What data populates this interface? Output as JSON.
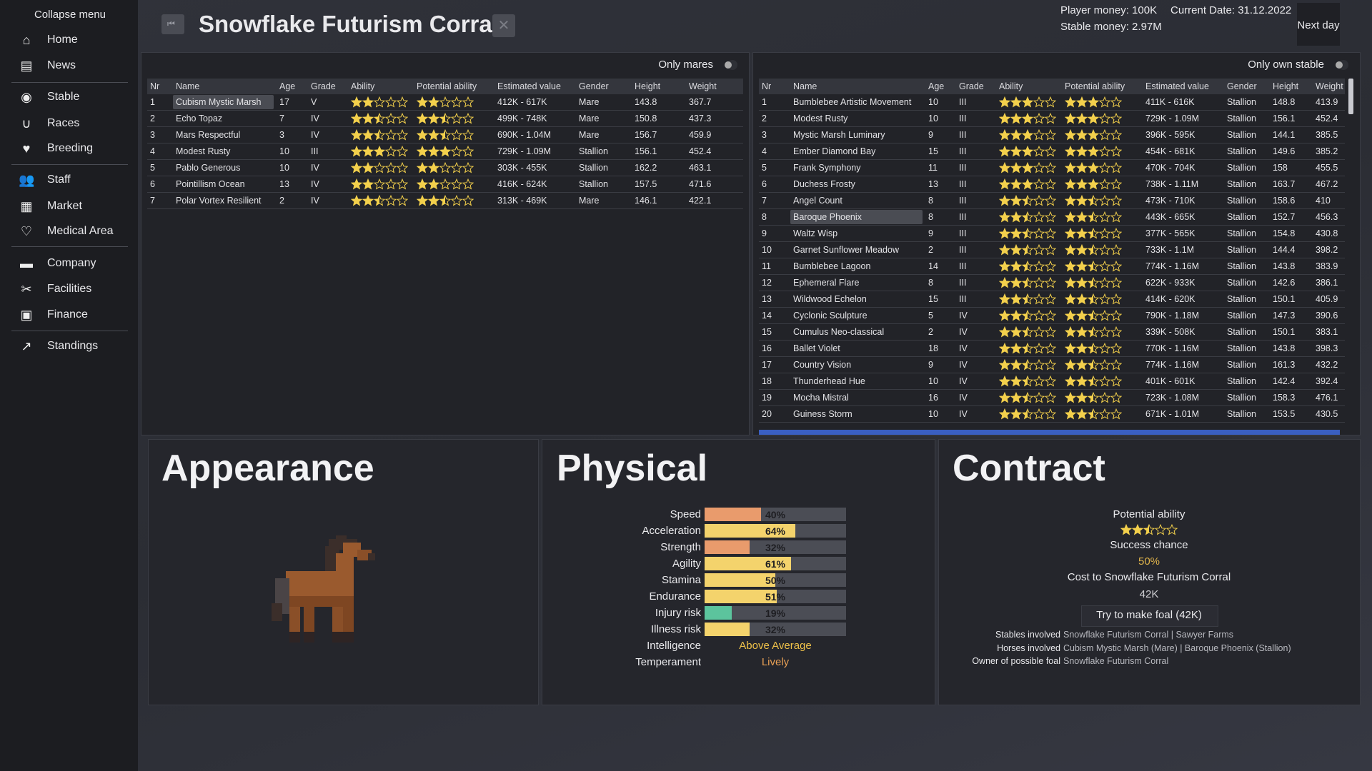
{
  "menu": {
    "collapse": "Collapse menu",
    "groups": [
      [
        "Home",
        "News"
      ],
      [
        "Stable",
        "Races",
        "Breeding"
      ],
      [
        "Staff",
        "Market",
        "Medical Area"
      ],
      [
        "Company",
        "Facilities",
        "Finance"
      ],
      [
        "Standings"
      ]
    ]
  },
  "header": {
    "title": "Snowflake Futurism Corral",
    "player_money": "Player money: 100K",
    "current_date": "Current Date: 31.12.2022",
    "stable_money": "Stable money: 2.97M",
    "next_day": "Next day"
  },
  "mares_table": {
    "toggle": "Only mares",
    "columns": [
      "Nr",
      "Name",
      "Age",
      "Grade",
      "Ability",
      "Potential ability",
      "Estimated value",
      "Gender",
      "Height",
      "Weight"
    ],
    "rows": [
      [
        1,
        "Cubism Mystic Marsh",
        17,
        "V",
        2,
        2,
        "412K - 617K",
        "Mare",
        143.8,
        367.7
      ],
      [
        2,
        "Echo Topaz",
        7,
        "IV",
        2.5,
        2.5,
        "499K - 748K",
        "Mare",
        150.8,
        437.3
      ],
      [
        3,
        "Mars Respectful",
        3,
        "IV",
        2.5,
        2.5,
        "690K - 1.04M",
        "Mare",
        156.7,
        459.9
      ],
      [
        4,
        "Modest Rusty",
        10,
        "III",
        3,
        3,
        "729K - 1.09M",
        "Stallion",
        156.1,
        452.4
      ],
      [
        5,
        "Pablo Generous",
        10,
        "IV",
        2,
        2,
        "303K - 455K",
        "Stallion",
        162.2,
        463.1
      ],
      [
        6,
        "Pointillism Ocean",
        13,
        "IV",
        2,
        2,
        "416K - 624K",
        "Stallion",
        157.5,
        471.6
      ],
      [
        7,
        "Polar Vortex Resilient",
        2,
        "IV",
        2.5,
        2.5,
        "313K - 469K",
        "Mare",
        146.1,
        422.1
      ]
    ]
  },
  "stallions_table": {
    "toggle": "Only own stable",
    "columns": [
      "Nr",
      "Name",
      "Age",
      "Grade",
      "Ability",
      "Potential ability",
      "Estimated value",
      "Gender",
      "Height",
      "Weight"
    ],
    "rows": [
      [
        1,
        "Bumblebee Artistic Movement",
        10,
        "III",
        3,
        3,
        "411K - 616K",
        "Stallion",
        148.8,
        413.9
      ],
      [
        2,
        "Modest Rusty",
        10,
        "III",
        3,
        3,
        "729K - 1.09M",
        "Stallion",
        156.1,
        452.4
      ],
      [
        3,
        "Mystic Marsh Luminary",
        9,
        "III",
        3,
        3,
        "396K - 595K",
        "Stallion",
        144.1,
        385.5
      ],
      [
        4,
        "Ember Diamond Bay",
        15,
        "III",
        3,
        3,
        "454K - 681K",
        "Stallion",
        149.6,
        385.2
      ],
      [
        5,
        "Frank Symphony",
        11,
        "III",
        3,
        3,
        "470K - 704K",
        "Stallion",
        158,
        455.5
      ],
      [
        6,
        "Duchess Frosty",
        13,
        "III",
        3,
        3,
        "738K - 1.11M",
        "Stallion",
        163.7,
        467.2
      ],
      [
        7,
        "Angel Count",
        8,
        "III",
        2.5,
        2.5,
        "473K - 710K",
        "Stallion",
        158.6,
        410
      ],
      [
        8,
        "Baroque Phoenix",
        8,
        "III",
        2.5,
        2.5,
        "443K - 665K",
        "Stallion",
        152.7,
        456.3
      ],
      [
        9,
        "Waltz Wisp",
        9,
        "III",
        2.5,
        2.5,
        "377K - 565K",
        "Stallion",
        154.8,
        430.8
      ],
      [
        10,
        "Garnet Sunflower Meadow",
        2,
        "III",
        2.5,
        2.5,
        "733K - 1.1M",
        "Stallion",
        144.4,
        398.2
      ],
      [
        11,
        "Bumblebee Lagoon",
        14,
        "III",
        2.5,
        2.5,
        "774K - 1.16M",
        "Stallion",
        143.8,
        383.9
      ],
      [
        12,
        "Ephemeral Flare",
        8,
        "III",
        2.5,
        2.5,
        "622K - 933K",
        "Stallion",
        142.6,
        386.1
      ],
      [
        13,
        "Wildwood Echelon",
        15,
        "III",
        2.5,
        2.5,
        "414K - 620K",
        "Stallion",
        150.1,
        405.9
      ],
      [
        14,
        "Cyclonic Sculpture",
        5,
        "IV",
        2.5,
        2.5,
        "790K - 1.18M",
        "Stallion",
        147.3,
        390.6
      ],
      [
        15,
        "Cumulus Neo-classical",
        2,
        "IV",
        2.5,
        2.5,
        "339K - 508K",
        "Stallion",
        150.1,
        383.1
      ],
      [
        16,
        "Ballet Violet",
        18,
        "IV",
        2.5,
        2.5,
        "770K - 1.16M",
        "Stallion",
        143.8,
        398.3
      ],
      [
        17,
        "Country Vision",
        9,
        "IV",
        2.5,
        2.5,
        "774K - 1.16M",
        "Stallion",
        161.3,
        432.2
      ],
      [
        18,
        "Thunderhead Hue",
        10,
        "IV",
        2.5,
        2.5,
        "401K - 601K",
        "Stallion",
        142.4,
        392.4
      ],
      [
        19,
        "Mocha Mistral",
        16,
        "IV",
        2.5,
        2.5,
        "723K - 1.08M",
        "Stallion",
        158.3,
        476.1
      ],
      [
        20,
        "Guiness Storm",
        10,
        "IV",
        2.5,
        2.5,
        "671K - 1.01M",
        "Stallion",
        153.5,
        430.5
      ]
    ]
  },
  "appearance": {
    "title": "Appearance"
  },
  "physical": {
    "title": "Physical",
    "xlim": [
      0,
      100
    ],
    "labels": [
      "Speed",
      "Acceleration",
      "Strength",
      "Agility",
      "Stamina",
      "Endurance",
      "Injury risk",
      "Illness risk"
    ],
    "values": [
      40,
      64,
      32,
      61,
      50,
      51,
      19,
      32
    ],
    "value_labels": [
      "40%",
      "64%",
      "32%",
      "61%",
      "50%",
      "51%",
      "19%",
      "32%"
    ],
    "colors": [
      "#e99b6c",
      "#f4d36c",
      "#e99b6c",
      "#f4d36c",
      "#f4d36c",
      "#f4d36c",
      "#5cc49d",
      "#f4d36c"
    ],
    "traits": [
      {
        "label": "Intelligence",
        "value": "Above Average",
        "color": "#f0c24a"
      },
      {
        "label": "Temperament",
        "value": "Lively",
        "color": "#e9a055"
      }
    ]
  },
  "contract": {
    "title": "Contract",
    "potential_label": "Potential ability",
    "potential": 2.5,
    "success_label": "Success chance",
    "success_value": "50%",
    "cost_label": "Cost to Snowflake Futurism Corral",
    "cost_value": "42K",
    "button": "Try to make foal (42K)",
    "details": [
      {
        "label": "Stables involved",
        "value": "Snowflake Futurism Corral | Sawyer Farms"
      },
      {
        "label": "Horses involved",
        "value": "Cubism Mystic Marsh (Mare) | Baroque Phoenix (Stallion)"
      },
      {
        "label": "Owner of possible foal",
        "value": "Snowflake Futurism Corral"
      }
    ]
  }
}
